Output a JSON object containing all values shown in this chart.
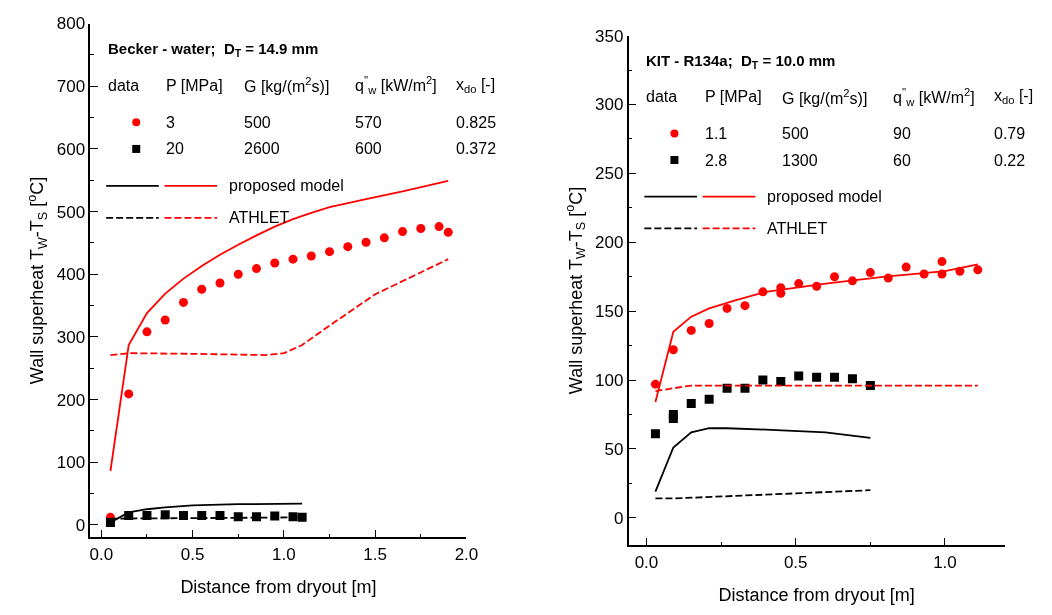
{
  "chart_data": [
    {
      "type": "line",
      "title": "Becker - water;  D$_{T}$ = 14.9 mm",
      "xlabel": "Distance from dryout [m]",
      "ylabel": "Wall superheat T$_{W}$-T$_{S}$ [$^{o}$C]",
      "legend": "top left",
      "annotations": [
        "data",
        "P [MPa]",
        "G [kg/(m$^{2}$s)]",
        "q$^{''}$$_{w}$ [kW/m$^{2}$]",
        "x$_{do}$ [-]",
        "500",
        "570",
        "0.825",
        "2600",
        "600",
        "0.372"
      ],
      "xlim": [
        -0.06,
        2.0
      ],
      "ylim": [
        -20,
        800
      ],
      "xticks": [
        {
          "value": 0,
          "label": "0.0"
        },
        {
          "value": 0.25,
          "label": null
        },
        {
          "value": 0.5,
          "label": "0.5"
        },
        {
          "value": 0.75,
          "label": null
        },
        {
          "value": 1,
          "label": "1.0"
        },
        {
          "value": 1.25,
          "label": null
        },
        {
          "value": 1.5,
          "label": "1.5"
        },
        {
          "value": 1.75,
          "label": null
        },
        {
          "value": 2,
          "label": "2.0"
        }
      ],
      "yticks": [
        0,
        {
          "value": 50,
          "label": null
        },
        100,
        {
          "value": 150,
          "label": null
        },
        200,
        {
          "value": 250,
          "label": null
        },
        300,
        {
          "value": 350,
          "label": null
        },
        400,
        {
          "value": 450,
          "label": null
        },
        500,
        {
          "value": 550,
          "label": null
        },
        600,
        {
          "value": 650,
          "label": null
        },
        700,
        {
          "value": 750,
          "label": null
        },
        800
      ],
      "series": [
        {
          "name": "3",
          "type": "scatter",
          "marker": "circle",
          "color": "#ff0000",
          "x": [
            0.05,
            0.15,
            0.25,
            0.35,
            0.45,
            0.55,
            0.65,
            0.75,
            0.85,
            0.95,
            1.05,
            1.15,
            1.25,
            1.35,
            1.45,
            1.55,
            1.65,
            1.75,
            1.85,
            1.9
          ],
          "values": [
            12,
            209,
            308,
            327,
            355,
            376,
            386,
            400,
            409,
            418,
            424,
            429,
            436,
            444,
            451,
            458,
            468,
            473,
            476,
            467
          ]
        },
        {
          "name": "20",
          "type": "scatter",
          "marker": "square",
          "color": "#000000",
          "x": [
            0.05,
            0.15,
            0.25,
            0.35,
            0.45,
            0.55,
            0.65,
            0.75,
            0.85,
            0.95,
            1.05,
            1.1
          ],
          "values": [
            4,
            15,
            15,
            16,
            15,
            15,
            15,
            13,
            13,
            14,
            13,
            12
          ]
        },
        {
          "line_style": "solid",
          "color": "#000000",
          "x": [
            0.05,
            0.15,
            0.25,
            0.35,
            0.5,
            0.75,
            1.1
          ],
          "values": [
            4,
            20,
            25,
            28,
            31,
            33,
            34
          ]
        },
        {
          "name": "proposed model",
          "line_style": "solid",
          "color": "#ff0000",
          "x": [
            0.05,
            0.15,
            0.25,
            0.35,
            0.45,
            0.55,
            0.65,
            0.75,
            0.85,
            0.95,
            1.05,
            1.15,
            1.25,
            1.45,
            1.65,
            1.9
          ],
          "values": [
            86,
            287,
            338,
            369,
            393,
            413,
            431,
            447,
            462,
            476,
            488,
            498,
            507,
            520,
            532,
            549
          ]
        },
        {
          "line_style": "dashed",
          "color": "#000000",
          "x": [
            0.05,
            1.1
          ],
          "values": [
            10,
            12
          ]
        },
        {
          "name": "ATHLET",
          "line_style": "dashed",
          "color": "#ff0000",
          "x": [
            0.05,
            0.15,
            0.5,
            0.9,
            1.0,
            1.1,
            1.25,
            1.5,
            1.9
          ],
          "values": [
            271,
            274,
            273,
            271,
            274,
            287,
            318,
            368,
            424
          ]
        }
      ]
    },
    {
      "type": "line",
      "title": "KIT - R134a;  D$_{T}$ = 10.0 mm",
      "xlabel": "Distance from dryout [m]",
      "ylabel": "Wall superheat T$_{W}$-T$_{S}$ [$^{o}$C]",
      "legend": "top left",
      "annotations": [
        "data",
        "P [MPa]",
        "G [kg/(m$^{2}$s)]",
        "q$^{''}$$_{w}$ [kW/m$^{2}$]",
        "x$_{do}$ [-]",
        "500",
        "90",
        "0.79",
        "1300",
        "60",
        "0.22"
      ],
      "xlim": [
        -0.06,
        1.2
      ],
      "ylim": [
        -20,
        350
      ],
      "xticks": [
        {
          "value": 0,
          "label": "0.0"
        },
        {
          "value": 0.25,
          "label": null
        },
        {
          "value": 0.5,
          "label": "0.5"
        },
        {
          "value": 0.75,
          "label": null
        },
        {
          "value": 1,
          "label": "1.0"
        }
      ],
      "yticks": [
        0,
        {
          "value": 25,
          "label": null
        },
        50,
        {
          "value": 75,
          "label": null
        },
        100,
        {
          "value": 125,
          "label": null
        },
        150,
        {
          "value": 175,
          "label": null
        },
        200,
        {
          "value": 225,
          "label": null
        },
        250,
        {
          "value": 275,
          "label": null
        },
        300,
        {
          "value": 325,
          "label": null
        },
        350
      ],
      "series": [
        {
          "name": "1.1",
          "type": "scatter",
          "marker": "circle",
          "color": "#ff0000",
          "x": [
            0.03,
            0.09,
            0.15,
            0.21,
            0.27,
            0.33,
            0.39,
            0.45,
            0.45,
            0.51,
            0.57,
            0.63,
            0.69,
            0.75,
            0.81,
            0.87,
            0.93,
            0.99,
            0.99,
            1.05,
            1.11
          ],
          "values": [
            97,
            122,
            136,
            141,
            152,
            154,
            164,
            167,
            163,
            170,
            168,
            175,
            172,
            178,
            174,
            182,
            177,
            186,
            177,
            179,
            180
          ]
        },
        {
          "name": "2.8",
          "type": "scatter",
          "marker": "square",
          "color": "#000000",
          "x": [
            0.03,
            0.09,
            0.09,
            0.15,
            0.21,
            0.27,
            0.33,
            0.39,
            0.45,
            0.51,
            0.57,
            0.63,
            0.69,
            0.75
          ],
          "values": [
            61,
            75,
            72,
            83,
            86,
            94,
            94,
            100,
            99,
            103,
            102,
            102,
            101,
            96
          ]
        },
        {
          "line_style": "solid",
          "color": "#000000",
          "x": [
            0.03,
            0.09,
            0.15,
            0.21,
            0.27,
            0.4,
            0.6,
            0.75
          ],
          "values": [
            19,
            51,
            62,
            65,
            65,
            64,
            62,
            58
          ]
        },
        {
          "name": "proposed model",
          "line_style": "solid",
          "color": "#ff0000",
          "x": [
            0.03,
            0.09,
            0.15,
            0.21,
            0.3,
            0.4,
            0.6,
            0.8,
            1.0,
            1.11
          ],
          "values": [
            84,
            135,
            146,
            152,
            158,
            164,
            170,
            175,
            179,
            184
          ]
        },
        {
          "line_style": "dashed",
          "color": "#000000",
          "x": [
            0.03,
            0.09,
            0.75
          ],
          "values": [
            14,
            14,
            20
          ]
        },
        {
          "name": "ATHLET",
          "line_style": "dashed",
          "color": "#ff0000",
          "x": [
            0.03,
            0.15,
            1.11
          ],
          "values": [
            92,
            96,
            96
          ]
        }
      ]
    }
  ]
}
